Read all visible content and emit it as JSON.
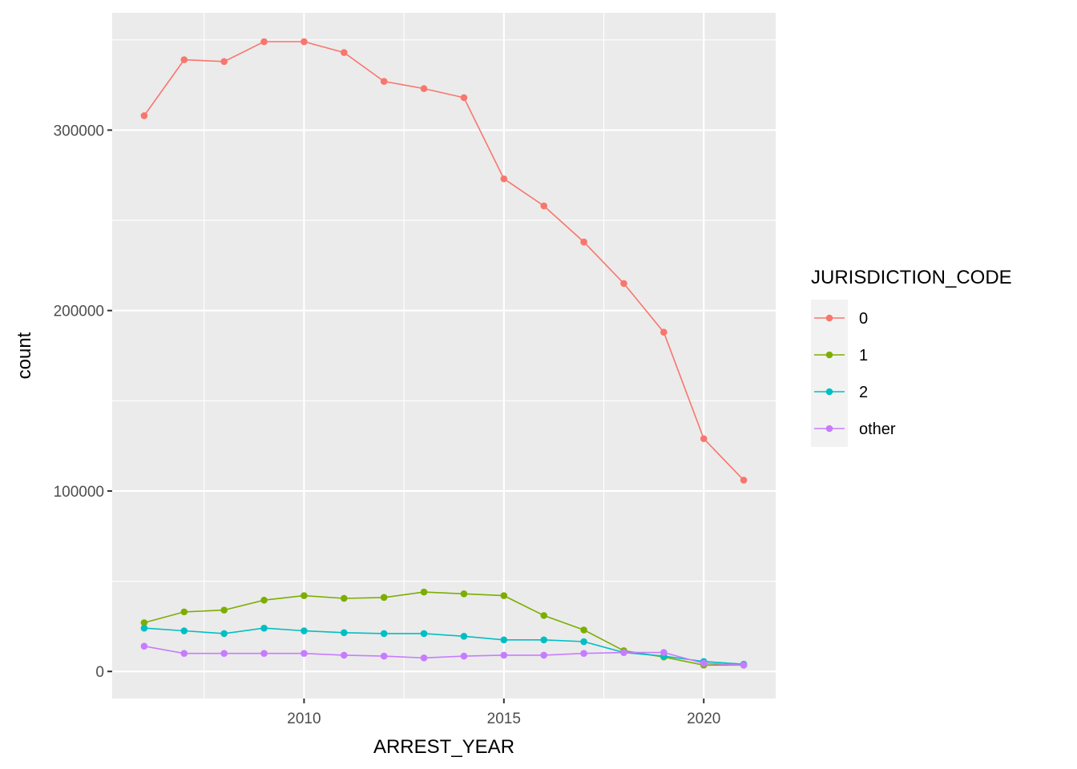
{
  "chart_data": {
    "type": "line",
    "xlabel": "ARREST_YEAR",
    "ylabel": "count",
    "x": [
      2006,
      2007,
      2008,
      2009,
      2010,
      2011,
      2012,
      2013,
      2014,
      2015,
      2016,
      2017,
      2018,
      2019,
      2020,
      2021
    ],
    "x_ticks": [
      2010,
      2015,
      2020
    ],
    "x_tick_labels": [
      "2010",
      "2015",
      "2020"
    ],
    "y_ticks": [
      0,
      100000,
      200000,
      300000
    ],
    "y_tick_labels": [
      "0",
      "100000",
      "200000",
      "300000"
    ],
    "xlim": [
      2005.2,
      2021.8
    ],
    "ylim": [
      -15000,
      365000
    ],
    "grid": true,
    "legend": {
      "title": "JURISDICTION_CODE",
      "position": "right"
    },
    "series": [
      {
        "name": "0",
        "color": "#F8766D",
        "values": [
          308000,
          339000,
          338000,
          349000,
          349000,
          343000,
          327000,
          323000,
          318000,
          273000,
          258000,
          238000,
          215000,
          188000,
          129000,
          106000
        ]
      },
      {
        "name": "1",
        "color": "#7CAE00",
        "values": [
          27000,
          33000,
          34000,
          39500,
          42000,
          40500,
          41000,
          44000,
          43000,
          42000,
          31000,
          23000,
          11500,
          8000,
          3500,
          3500
        ]
      },
      {
        "name": "2",
        "color": "#00BFC4",
        "values": [
          24000,
          22500,
          21000,
          24000,
          22500,
          21500,
          21000,
          21000,
          19500,
          17500,
          17500,
          16500,
          10500,
          8500,
          5500,
          4000
        ]
      },
      {
        "name": "other",
        "color": "#C77CFF",
        "values": [
          14000,
          10000,
          10000,
          10000,
          10000,
          9000,
          8500,
          7500,
          8500,
          9000,
          9000,
          10000,
          10500,
          10500,
          4500,
          3500
        ]
      }
    ]
  }
}
